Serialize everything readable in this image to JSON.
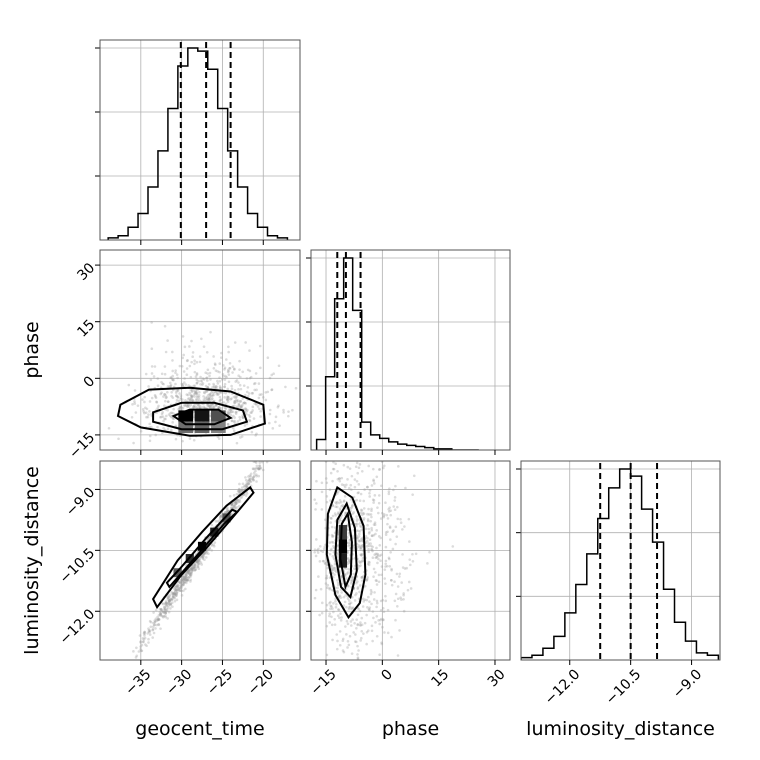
{
  "chart_data": {
    "type": "corner",
    "parameters": [
      "geocent_time",
      "phase",
      "luminosity_distance"
    ],
    "grid": true,
    "colors": {
      "ink": "#000000",
      "scatter": "#9a9a9a",
      "grid": "#b0b0b0"
    },
    "ranges": {
      "geocent_time": [
        -40,
        -15.5
      ],
      "phase": [
        -19,
        34
      ],
      "luminosity_distance": [
        -13.2,
        -8.3
      ]
    },
    "ticks": {
      "geocent_time": [
        -35,
        -30,
        -25,
        -20
      ],
      "phase": [
        -15,
        0,
        15,
        30
      ],
      "luminosity_distance": [
        -12.0,
        -10.5,
        -9.0
      ]
    },
    "tick_labels": {
      "geocent_time": [
        "−35",
        "−30",
        "−25",
        "−20"
      ],
      "phase": [
        "−15",
        "0",
        "15",
        "30"
      ],
      "luminosity_distance": [
        "−12.0",
        "−10.5",
        "−9.0"
      ]
    },
    "quantiles": {
      "geocent_time": [
        -30.1,
        -27.0,
        -24.0
      ],
      "phase": [
        -12.0,
        -9.7,
        -5.8
      ],
      "luminosity_distance": [
        -11.25,
        -10.5,
        -9.85
      ]
    },
    "histograms": {
      "geocent_time": {
        "edges": [
          -39,
          -37.78,
          -36.56,
          -35.34,
          -34.12,
          -32.9,
          -31.68,
          -30.46,
          -29.24,
          -28.02,
          -26.8,
          -25.58,
          -24.36,
          -23.14,
          -21.92,
          -20.7,
          -19.48,
          -18.26,
          -17.04
        ],
        "counts": [
          2,
          4,
          12,
          25,
          50,
          84,
          124,
          164,
          181,
          178,
          161,
          124,
          84,
          50,
          25,
          12,
          4,
          2
        ]
      },
      "phase": {
        "edges": [
          -17.5,
          -15.1,
          -12.7,
          -10.3,
          -7.9,
          -5.5,
          -3.1,
          -0.7,
          1.7,
          4.1,
          6.5,
          8.9,
          11.3,
          13.7,
          16.1,
          18.5,
          20.9,
          23.3,
          25.7
        ],
        "counts": [
          9,
          63,
          130,
          165,
          120,
          24,
          13,
          10,
          7,
          5,
          4,
          3,
          2,
          1,
          1,
          0,
          0,
          0
        ]
      },
      "luminosity_distance": {
        "edges": [
          -13.2,
          -12.93,
          -12.66,
          -12.39,
          -12.12,
          -11.85,
          -11.58,
          -11.31,
          -11.04,
          -10.77,
          -10.5,
          -10.23,
          -9.96,
          -9.69,
          -9.42,
          -9.15,
          -8.88,
          -8.61,
          -8.34
        ],
        "counts": [
          1,
          2,
          5,
          10,
          20,
          32,
          45,
          60,
          73,
          81,
          78,
          64,
          50,
          30,
          16,
          8,
          3,
          2
        ]
      }
    },
    "scatter_models": {
      "phase_vs_geocent_time": {
        "x_mean": -27.5,
        "x_sd": 4.0,
        "y_mean": -9.0,
        "y_sd": 4.5,
        "tail": "phase",
        "n": 900
      },
      "luminosity_distance_vs_geocent_time": {
        "x_mean": -27.5,
        "x_sd": 4.0,
        "slope": 0.3,
        "y_mean": -10.55,
        "y_sd": 0.12,
        "n": 900
      },
      "luminosity_distance_vs_phase": {
        "x_mean": -9.0,
        "x_sd": 4.5,
        "tail": "phase",
        "y_mean": -10.55,
        "y_sd": 1.2,
        "n": 900
      }
    },
    "contours": {
      "phase_vs_geocent_time": [
        [
          [
            -37.5,
            -7
          ],
          [
            -34,
            -3
          ],
          [
            -29,
            -2.5
          ],
          [
            -24,
            -3.5
          ],
          [
            -20,
            -7
          ],
          [
            -19.8,
            -12
          ],
          [
            -24,
            -15
          ],
          [
            -29,
            -15.2
          ],
          [
            -35,
            -13
          ],
          [
            -37.8,
            -10
          ],
          [
            -37.5,
            -7
          ]
        ],
        [
          [
            -33.5,
            -9
          ],
          [
            -30,
            -6.5
          ],
          [
            -26,
            -6.5
          ],
          [
            -22.5,
            -8.5
          ],
          [
            -22,
            -11.5
          ],
          [
            -25,
            -13.5
          ],
          [
            -30,
            -13.5
          ],
          [
            -33.5,
            -11.5
          ],
          [
            -33.5,
            -9
          ]
        ],
        [
          [
            -31,
            -10
          ],
          [
            -29,
            -8.3
          ],
          [
            -25.5,
            -8.3
          ],
          [
            -24,
            -10.5
          ],
          [
            -26,
            -12.2
          ],
          [
            -29.5,
            -12.2
          ],
          [
            -31,
            -10
          ]
        ]
      ],
      "luminosity_distance_vs_geocent_time": [
        [
          [
            -33,
            -11.9
          ],
          [
            -30,
            -11.1
          ],
          [
            -27,
            -10.45
          ],
          [
            -24,
            -9.75
          ],
          [
            -21.2,
            -9.08
          ],
          [
            -21.6,
            -8.95
          ],
          [
            -24.5,
            -9.4
          ],
          [
            -27.5,
            -10.05
          ],
          [
            -30.5,
            -10.75
          ],
          [
            -33.5,
            -11.7
          ],
          [
            -33,
            -11.9
          ]
        ],
        [
          [
            -31.5,
            -11.4
          ],
          [
            -28,
            -10.6
          ],
          [
            -24.8,
            -9.85
          ],
          [
            -23.2,
            -9.55
          ],
          [
            -23.8,
            -9.5
          ],
          [
            -27,
            -10.2
          ],
          [
            -30.2,
            -10.95
          ],
          [
            -31.8,
            -11.3
          ],
          [
            -31.5,
            -11.4
          ]
        ]
      ],
      "luminosity_distance_vs_phase": [
        [
          [
            -14.5,
            -9.6
          ],
          [
            -12,
            -8.95
          ],
          [
            -8,
            -9.2
          ],
          [
            -5,
            -9.9
          ],
          [
            -4.5,
            -11.1
          ],
          [
            -6,
            -11.8
          ],
          [
            -9,
            -12.15
          ],
          [
            -12.5,
            -11.6
          ],
          [
            -14.8,
            -10.6
          ],
          [
            -14.5,
            -9.6
          ]
        ],
        [
          [
            -12,
            -9.75
          ],
          [
            -9.5,
            -9.35
          ],
          [
            -7.3,
            -9.95
          ],
          [
            -6.8,
            -11.0
          ],
          [
            -8.5,
            -11.65
          ],
          [
            -11,
            -11.4
          ],
          [
            -12.5,
            -10.6
          ],
          [
            -12,
            -9.75
          ]
        ],
        [
          [
            -10.8,
            -9.85
          ],
          [
            -9.2,
            -9.6
          ],
          [
            -8.1,
            -10.3
          ],
          [
            -8.4,
            -11.1
          ],
          [
            -9.8,
            -11.4
          ],
          [
            -11.2,
            -10.7
          ],
          [
            -10.8,
            -9.85
          ]
        ]
      ]
    },
    "density_pixels": {
      "phase_vs_geocent_time": [
        {
          "x": -29.5,
          "y": -10,
          "w": 1.8,
          "h": 3,
          "v": 1.0
        },
        {
          "x": -27.5,
          "y": -10,
          "w": 1.8,
          "h": 3,
          "v": 0.9
        },
        {
          "x": -25.5,
          "y": -10,
          "w": 1.8,
          "h": 3,
          "v": 0.6
        },
        {
          "x": -29.5,
          "y": -13,
          "w": 1.8,
          "h": 3,
          "v": 0.45
        },
        {
          "x": -27.5,
          "y": -13,
          "w": 1.8,
          "h": 3,
          "v": 0.5
        },
        {
          "x": -25.5,
          "y": -13,
          "w": 1.8,
          "h": 3,
          "v": 0.35
        }
      ],
      "luminosity_distance_vs_geocent_time": [
        {
          "x": -30.5,
          "y": -11.05,
          "w": 1.0,
          "h": 0.22,
          "v": 0.55
        },
        {
          "x": -29.0,
          "y": -10.7,
          "w": 1.0,
          "h": 0.22,
          "v": 0.8
        },
        {
          "x": -27.5,
          "y": -10.4,
          "w": 1.0,
          "h": 0.22,
          "v": 1.0
        },
        {
          "x": -26.0,
          "y": -10.05,
          "w": 1.0,
          "h": 0.22,
          "v": 0.85
        },
        {
          "x": -24.5,
          "y": -9.7,
          "w": 1.0,
          "h": 0.22,
          "v": 0.6
        }
      ],
      "luminosity_distance_vs_phase": [
        {
          "x": -10.5,
          "y": -10.05,
          "w": 2.2,
          "h": 0.35,
          "v": 0.7
        },
        {
          "x": -10.5,
          "y": -10.4,
          "w": 2.2,
          "h": 0.35,
          "v": 1.0
        },
        {
          "x": -10.5,
          "y": -10.75,
          "w": 2.2,
          "h": 0.35,
          "v": 0.85
        }
      ]
    }
  }
}
